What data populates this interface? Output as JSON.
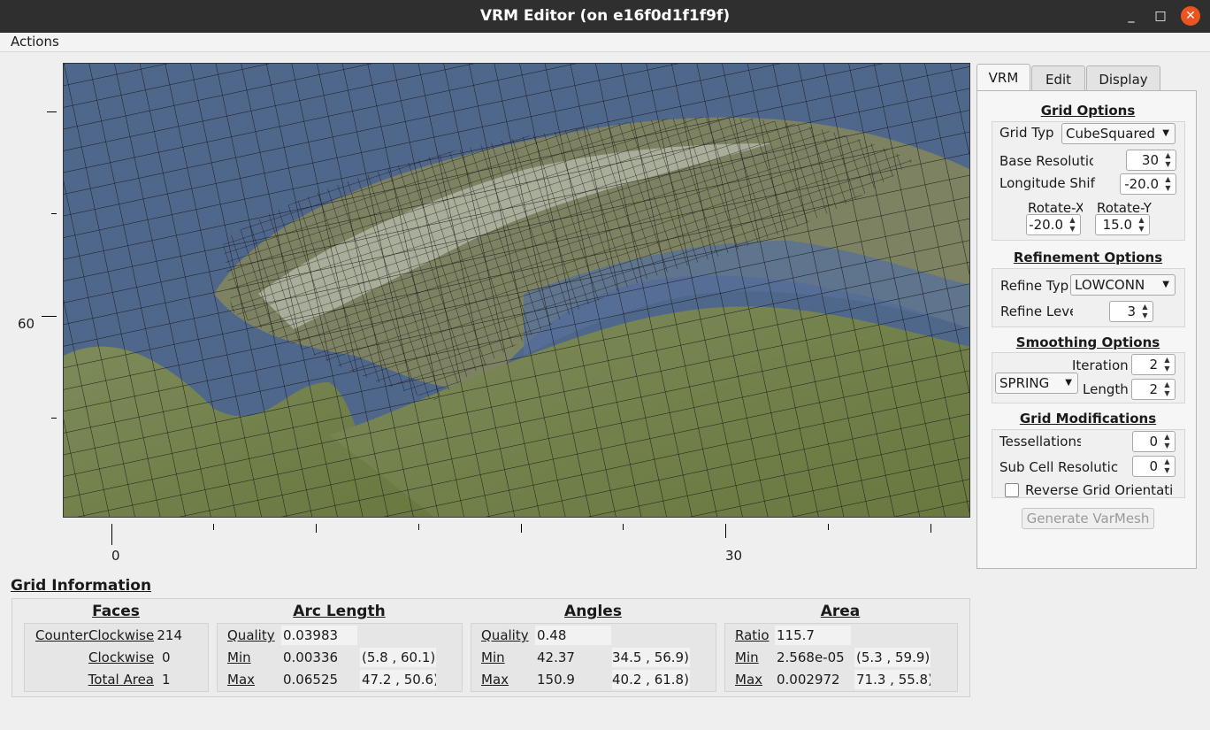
{
  "window": {
    "title": "VRM Editor (on e16f0d1f1f9f)",
    "minimize": "_",
    "maximize": "□",
    "close": "✕"
  },
  "menu": {
    "actions": "Actions"
  },
  "plot": {
    "y_tick_label": "60",
    "x_tick_labels": [
      "0",
      "30"
    ]
  },
  "tabs": [
    "VRM",
    "Edit",
    "Display"
  ],
  "grid_options": {
    "title": "Grid Options",
    "grid_type_label": "Grid Typ",
    "grid_type_value": "CubeSquared",
    "base_res_label": "Base Resolutic",
    "base_res_value": "30",
    "lon_shift_label": "Longitude  Shif",
    "lon_shift_value": "-20.0",
    "rotate_x_label": "Rotate-X",
    "rotate_x_value": "-20.0",
    "rotate_y_label": "Rotate-Y",
    "rotate_y_value": "15.0"
  },
  "refinement": {
    "title": "Refinement Options",
    "type_label": "Refine Typ",
    "type_value": "LOWCONN",
    "level_label": "Refine Leve",
    "level_value": "3"
  },
  "smoothing": {
    "title": "Smoothing Options",
    "method": "SPRING",
    "iteration_label": "Iteration",
    "iteration_value": "2",
    "length_label": "Length",
    "length_value": "2"
  },
  "modifications": {
    "title": "Grid Modifications",
    "tess_label": "Tessellations",
    "tess_value": "0",
    "subcell_label": "Sub Cell Resolutic",
    "subcell_value": "0",
    "reverse_label": "Reverse Grid Orientati"
  },
  "generate_button": "Generate VarMesh",
  "grid_info": {
    "title": "Grid Information",
    "faces": {
      "title": "Faces",
      "ccw_label": "CounterClockwise",
      "ccw_value": "214",
      "cw_label": "Clockwise",
      "cw_value": "0",
      "total_label": "Total Area",
      "total_value": "1"
    },
    "arc": {
      "title": "Arc Length",
      "quality_label": "Quality",
      "quality_value": "0.03983",
      "min_label": "Min",
      "min_value": "0.00336",
      "min_loc": "(5.8 , 60.1)",
      "max_label": "Max",
      "max_value": "0.06525",
      "max_loc": "47.2 , 50.6)"
    },
    "angles": {
      "title": "Angles",
      "quality_label": "Quality",
      "quality_value": "0.48",
      "min_label": "Min",
      "min_value": "42.37",
      "min_loc": "34.5 , 56.9)",
      "max_label": "Max",
      "max_value": "150.9",
      "max_loc": "40.2 , 61.8)"
    },
    "area": {
      "title": "Area",
      "ratio_label": "Ratio",
      "ratio_value": "115.7",
      "min_label": "Min",
      "min_value": "2.568e-05",
      "min_loc": "(5.3 , 59.9)",
      "max_label": "Max",
      "max_value": "0.002972",
      "max_loc": "71.3 , 55.8)"
    }
  }
}
